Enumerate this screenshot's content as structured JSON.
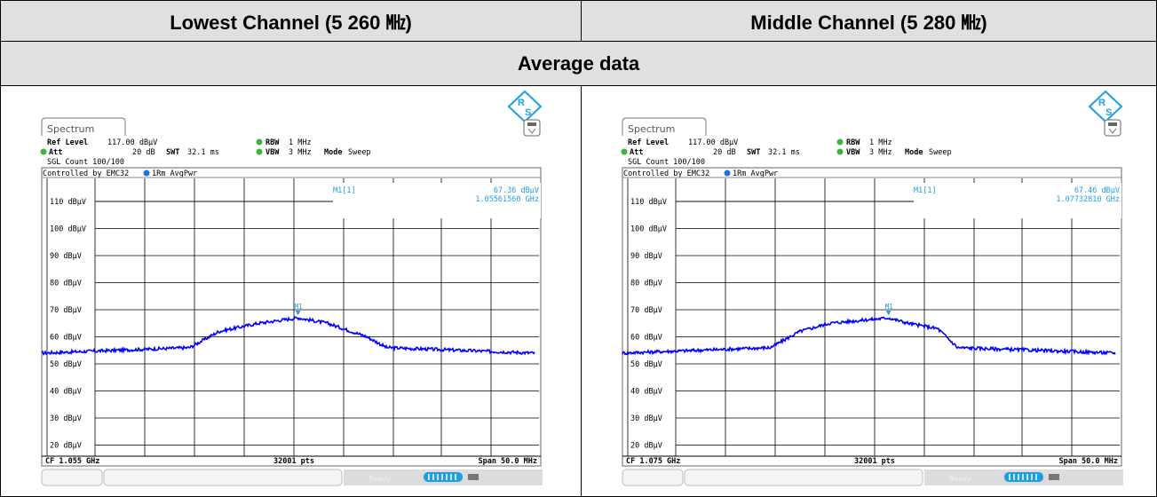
{
  "header": {
    "left_title": "Lowest Channel (5 260 ㎒)",
    "right_title": "Middle Channel (5 280 ㎒)",
    "row_title": "Average data"
  },
  "panels": [
    {
      "tab": "Spectrum",
      "ref_level_label": "Ref Level",
      "ref_level_value": "117.00 dBµV",
      "att_label": "Att",
      "att_value": "20 dB",
      "swt_label": "SWT",
      "swt_value": "32.1 ms",
      "rbw_label": "RBW",
      "rbw_value": "1 MHz",
      "vbw_label": "VBW",
      "vbw_value": "3 MHz",
      "mode_label": "Mode",
      "mode_value": "Sweep",
      "sgl_count": "SGL Count 100/100",
      "controlled": "Controlled by EMC32",
      "trace": "1Rm AvgPwr",
      "marker_label": "M1[1]",
      "marker_level": "67.36 dBµV",
      "marker_freq": "1.05561560 GHz",
      "marker_tag": "M1",
      "cf": "CF 1.055 GHz",
      "pts": "32001 pts",
      "span": "Span 50.0 MHz",
      "ready": "Ready",
      "y_ticks": [
        "110 dBµV",
        "100 dBµV",
        "90 dBµV",
        "80 dBµV",
        "70 dBµV",
        "60 dBµV",
        "50 dBµV",
        "40 dBµV",
        "30 dBµV",
        "20 dBµV"
      ],
      "trace_color": "#0000ff",
      "marker_color": "#1f9fdf"
    },
    {
      "tab": "Spectrum",
      "ref_level_label": "Ref Level",
      "ref_level_value": "117.00 dBµV",
      "att_label": "Att",
      "att_value": "20 dB",
      "swt_label": "SWT",
      "swt_value": "32.1 ms",
      "rbw_label": "RBW",
      "rbw_value": "1 MHz",
      "vbw_label": "VBW",
      "vbw_value": "3 MHz",
      "mode_label": "Mode",
      "mode_value": "Sweep",
      "sgl_count": "SGL Count 100/100",
      "controlled": "Controlled by EMC32",
      "trace": "1Rm AvgPwr",
      "marker_label": "M1[1]",
      "marker_level": "67.46 dBµV",
      "marker_freq": "1.07732810 GHz",
      "marker_tag": "M1",
      "cf": "CF 1.075 GHz",
      "pts": "32001 pts",
      "span": "Span 50.0 MHz",
      "ready": "Ready",
      "y_ticks": [
        "110 dBµV",
        "100 dBµV",
        "90 dBµV",
        "80 dBµV",
        "70 dBµV",
        "60 dBµV",
        "50 dBµV",
        "40 dBµV",
        "30 dBµV",
        "20 dBµV"
      ],
      "trace_color": "#0000ff",
      "marker_color": "#1f9fdf"
    }
  ],
  "trace_shapes": [
    {
      "marker_x_pct": 52,
      "plateau": [
        [
          0,
          54
        ],
        [
          30,
          56
        ],
        [
          36,
          62
        ],
        [
          44,
          65
        ],
        [
          52,
          67
        ],
        [
          58,
          65
        ],
        [
          66,
          60
        ],
        [
          70,
          56
        ],
        [
          100,
          54
        ]
      ]
    },
    {
      "marker_x_pct": 54,
      "plateau": [
        [
          0,
          54
        ],
        [
          30,
          56
        ],
        [
          36,
          62
        ],
        [
          42,
          65
        ],
        [
          54,
          67
        ],
        [
          58,
          65
        ],
        [
          64,
          63
        ],
        [
          68,
          56
        ],
        [
          100,
          54
        ]
      ]
    }
  ]
}
